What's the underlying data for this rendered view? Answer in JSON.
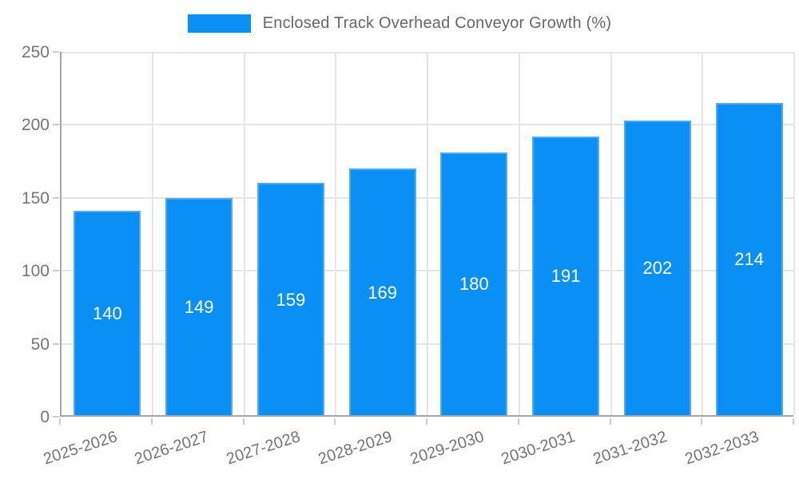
{
  "chart_data": {
    "type": "bar",
    "title": "Enclosed Track Overhead Conveyor Growth (%)",
    "categories": [
      "2025-2026",
      "2026-2027",
      "2027-2028",
      "2028-2029",
      "2029-2030",
      "2030-2031",
      "2031-2032",
      "2032-2033"
    ],
    "values": [
      140,
      149,
      159,
      169,
      180,
      191,
      202,
      214
    ],
    "xlabel": "",
    "ylabel": "",
    "ylim": [
      0,
      250
    ],
    "yticks": [
      0,
      50,
      100,
      150,
      200,
      250
    ],
    "grid": true,
    "legend_position": "top",
    "value_labels": "centered-inside-bars",
    "colors": {
      "bar_fill": "#0a90f4",
      "bar_border": "#55a9f2",
      "grid": "#e6e6e6",
      "axis": "#a6a6a6",
      "tick_mark": "#cccccc",
      "legend_text": "#676767",
      "axis_text": "#757575",
      "value_text": "#ffffff"
    }
  }
}
